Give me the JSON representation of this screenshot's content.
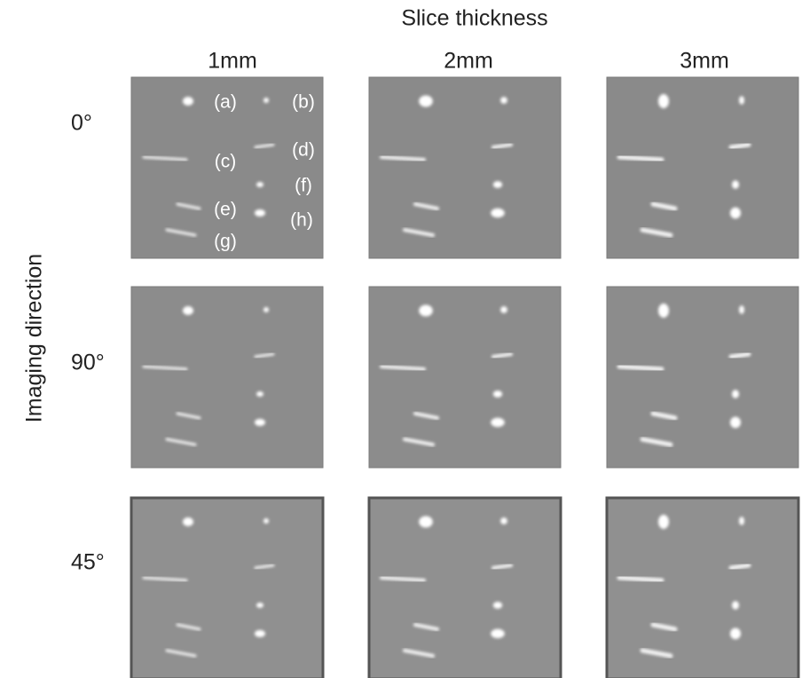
{
  "header": {
    "title": "Slice thickness",
    "columns": [
      "1mm",
      "2mm",
      "3mm"
    ]
  },
  "side": {
    "title": "Imaging direction",
    "rows": [
      "0°",
      "90°",
      "45°"
    ]
  },
  "markers": [
    "(a)",
    "(b)",
    "(c)",
    "(d)",
    "(e)",
    "(f)",
    "(g)",
    "(h)"
  ]
}
